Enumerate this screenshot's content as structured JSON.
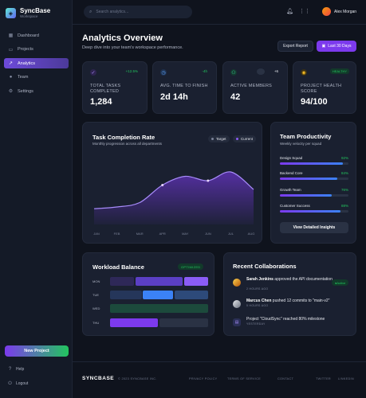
{
  "brand": {
    "name": "SyncBase",
    "subtitle": "Workspace"
  },
  "sidebar": {
    "items": [
      {
        "label": "Dashboard",
        "icon": "grid-icon"
      },
      {
        "label": "Projects",
        "icon": "folder-icon"
      },
      {
        "label": "Analytics",
        "icon": "chart-icon",
        "active": true
      },
      {
        "label": "Team",
        "icon": "users-icon"
      },
      {
        "label": "Settings",
        "icon": "gear-icon"
      }
    ],
    "new_project": "New Project",
    "help": "Help",
    "logout": "Logout"
  },
  "topbar": {
    "search_placeholder": "Search analytics...",
    "user_name": "Alex Morgan"
  },
  "header": {
    "title": "Analytics Overview",
    "subtitle": "Deep dive into your team's workspace performance.",
    "export_label": "Export Report",
    "range_label": "Last 30 Days"
  },
  "stats": [
    {
      "label_line1": "TOTAL TASKS",
      "label_line2": "COMPLETED",
      "value": "1,284",
      "badge": "+12.5%",
      "accent": "#a78bfa"
    },
    {
      "label_line1": "AVG. TIME TO FINISH",
      "label_line2": "",
      "value": "2d 14h",
      "badge": "-4h",
      "accent": "#60a5fa"
    },
    {
      "label_line1": "ACTIVE MEMBERS",
      "label_line2": "",
      "value": "42",
      "badge": "+6",
      "accent": "#34d399"
    },
    {
      "label_line1": "PROJECT HEALTH",
      "label_line2": "SCORE",
      "value": "94/100",
      "badge": "HEALTHY",
      "accent": "#fbbf24"
    }
  ],
  "completion": {
    "title": "Task Completion Rate",
    "subtitle": "Monthly progression across all departments",
    "legend_target": "Target",
    "legend_current": "Current"
  },
  "chart_data": {
    "type": "area",
    "title": "Task Completion Rate",
    "subtitle": "Monthly progression across all departments",
    "categories": [
      "JAN",
      "FEB",
      "MAR",
      "APR",
      "MAY",
      "JUN",
      "JUL",
      "AUG"
    ],
    "series": [
      {
        "name": "Current",
        "values": [
          18,
          20,
          25,
          45,
          55,
          50,
          60,
          40
        ]
      }
    ],
    "ylim": [
      0,
      80
    ],
    "grid": false,
    "legend": "top-right"
  },
  "productivity": {
    "title": "Team Productivity",
    "subtitle": "Weekly velocity per squad",
    "squads": [
      {
        "name": "Design Squad",
        "pct": "92%",
        "value": 92
      },
      {
        "name": "Backend Core",
        "pct": "84%",
        "value": 84
      },
      {
        "name": "Growth Team",
        "pct": "76%",
        "value": 76
      },
      {
        "name": "Customer Success",
        "pct": "88%",
        "value": 88
      }
    ],
    "button": "View Detailed Insights"
  },
  "workload": {
    "title": "Workload Balance",
    "badge": "OPTIMIZED",
    "rows": [
      {
        "day": "MON"
      },
      {
        "day": "TUE"
      },
      {
        "day": "WED"
      },
      {
        "day": "THU"
      }
    ]
  },
  "collaborations": {
    "title": "Recent Collaborations",
    "items": [
      {
        "actor": "Sarah Jenkins",
        "text": " approved the API documentation",
        "time": "2 HOURS AGO",
        "status": "Active"
      },
      {
        "actor": "Marcus Chen",
        "text": " pushed 12 commits to \"main-v2\"",
        "time": "5 HOURS AGO"
      },
      {
        "actor": "",
        "text": "Project \"CloudSync\" reached 80% milestone",
        "time": "YESTERDAY"
      }
    ]
  },
  "footer": {
    "brand": "SYNCBASE",
    "copyright": "© 2023 SYNCBASE INC.",
    "links": [
      "PRIVACY POLICY",
      "TERMS OF SERVICE",
      "CONTACT"
    ],
    "social": [
      "TWITTER",
      "LINKEDIN"
    ]
  }
}
